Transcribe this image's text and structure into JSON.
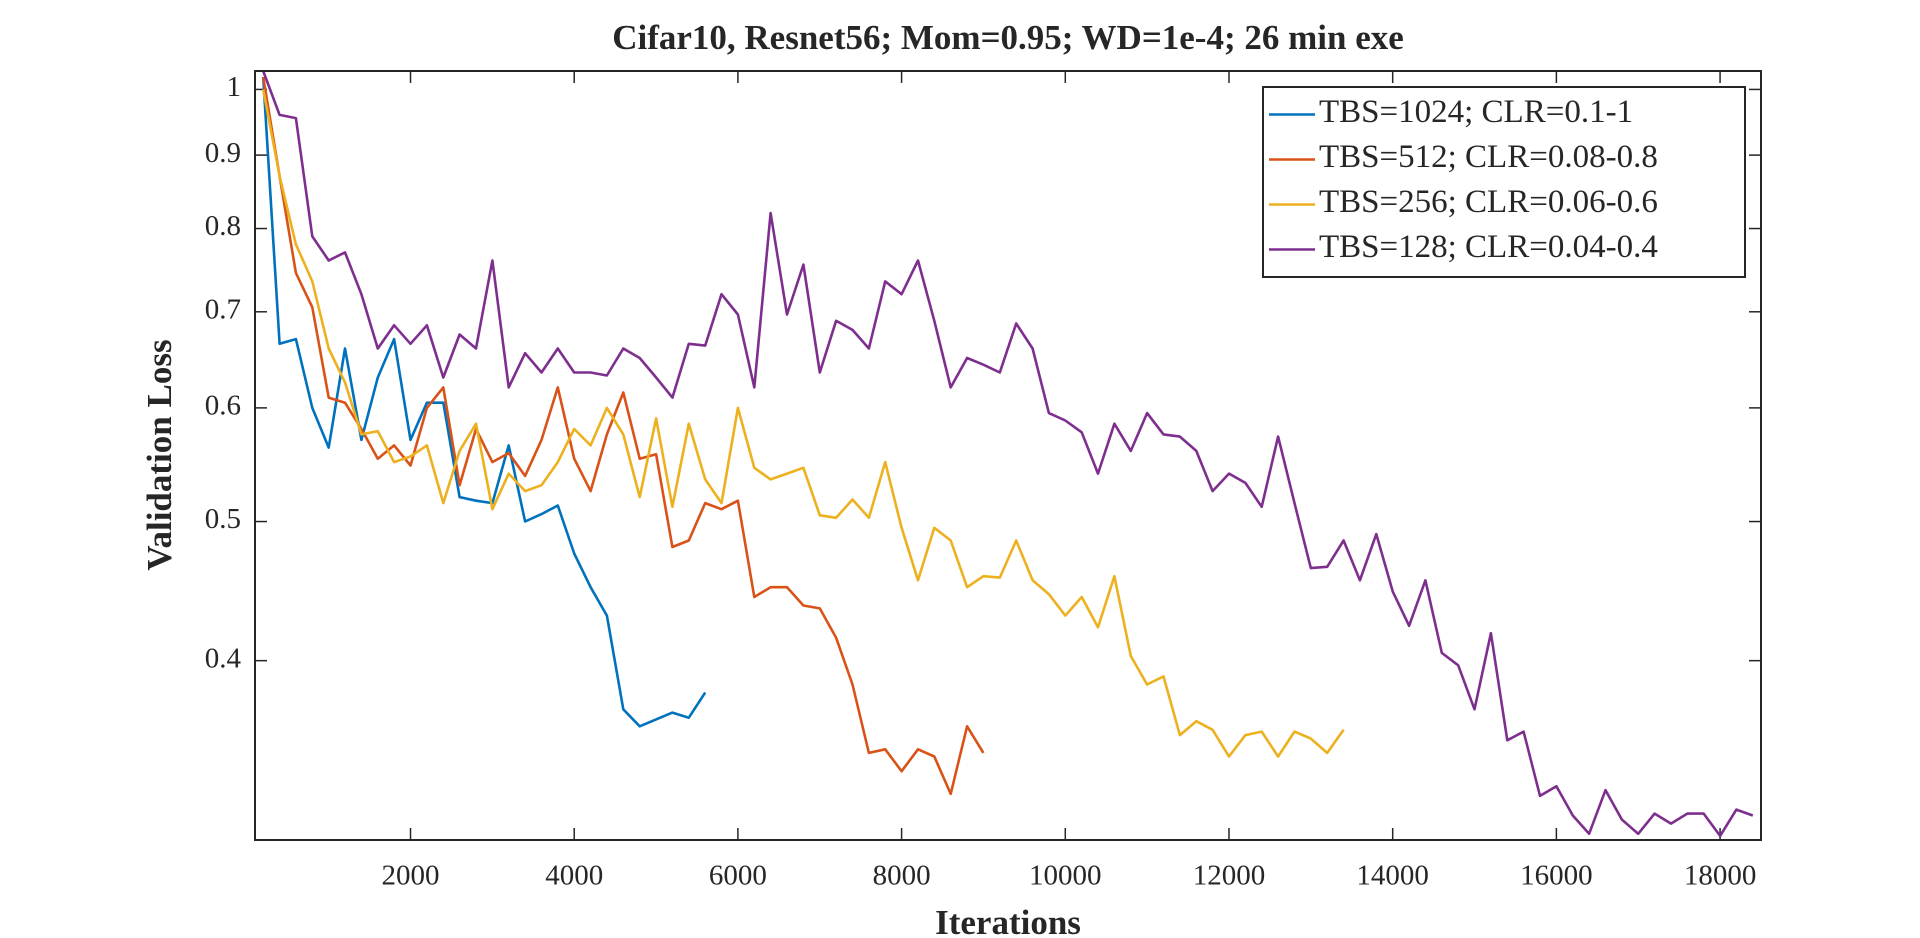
{
  "chart_data": {
    "type": "line",
    "title": "Cifar10, Resnet56; Mom=0.95; WD=1e-4; 26 min exe",
    "x_label": "Iterations",
    "y_label": "Validation Loss",
    "xlim": [
      100,
      18500
    ],
    "ylim": [
      0.3,
      1.03
    ],
    "yscale": "log",
    "xticks": [
      2000,
      4000,
      6000,
      8000,
      10000,
      12000,
      14000,
      16000,
      18000
    ],
    "yticks": [
      0.4,
      0.5,
      0.6,
      0.7,
      0.8,
      0.9,
      1
    ],
    "legend": "upper right",
    "series": [
      {
        "name": "TBS=1024; CLR=0.1-1",
        "color": "#0072BD",
        "x": [
          200,
          400,
          600,
          800,
          1000,
          1200,
          1400,
          1600,
          1800,
          2000,
          2200,
          2400,
          2600,
          2800,
          3000,
          3200,
          3400,
          3600,
          3800,
          4000,
          4200,
          4400,
          4600,
          4800,
          5000,
          5200,
          5400,
          5600
        ],
        "values": [
          1.02,
          0.665,
          0.67,
          0.6,
          0.563,
          0.66,
          0.57,
          0.63,
          0.67,
          0.57,
          0.605,
          0.605,
          0.52,
          0.517,
          0.515,
          0.565,
          0.5,
          0.506,
          0.513,
          0.475,
          0.45,
          0.43,
          0.37,
          0.36,
          0.364,
          0.368,
          0.365,
          0.38
        ]
      },
      {
        "name": "TBS=512; CLR=0.08-0.8",
        "color": "#D95319",
        "x": [
          200,
          400,
          600,
          800,
          1000,
          1200,
          1400,
          1600,
          1800,
          2000,
          2200,
          2400,
          2600,
          2800,
          3000,
          3200,
          3400,
          3600,
          3800,
          4000,
          4200,
          4400,
          4600,
          4800,
          5000,
          5200,
          5400,
          5600,
          5800,
          6000,
          6200,
          6400,
          6600,
          6800,
          7000,
          7200,
          7400,
          7600,
          7800,
          8000,
          8200,
          8400,
          8600,
          8800,
          9000
        ],
        "values": [
          1.02,
          0.87,
          0.745,
          0.705,
          0.61,
          0.605,
          0.58,
          0.553,
          0.565,
          0.547,
          0.6,
          0.62,
          0.53,
          0.58,
          0.55,
          0.558,
          0.538,
          0.57,
          0.62,
          0.553,
          0.525,
          0.575,
          0.615,
          0.553,
          0.557,
          0.48,
          0.485,
          0.515,
          0.51,
          0.517,
          0.443,
          0.45,
          0.45,
          0.437,
          0.435,
          0.415,
          0.385,
          0.345,
          0.347,
          0.335,
          0.347,
          0.343,
          0.323,
          0.36,
          0.345
        ]
      },
      {
        "name": "TBS=256; CLR=0.06-0.6",
        "color": "#EDB120",
        "x": [
          200,
          400,
          600,
          800,
          1000,
          1200,
          1400,
          1600,
          1800,
          2000,
          2200,
          2400,
          2600,
          2800,
          3000,
          3200,
          3400,
          3600,
          3800,
          4000,
          4200,
          4400,
          4600,
          4800,
          5000,
          5200,
          5400,
          5600,
          5800,
          6000,
          6200,
          6400,
          6600,
          6800,
          7000,
          7200,
          7400,
          7600,
          7800,
          8000,
          8200,
          8400,
          8600,
          8800,
          9000,
          9200,
          9400,
          9600,
          9800,
          10000,
          10200,
          10400,
          10600,
          10800,
          11000,
          11200,
          11400,
          11600,
          11800,
          12000,
          12200,
          12400,
          12600,
          12800,
          13000,
          13200,
          13400
        ],
        "values": [
          1.0,
          0.87,
          0.78,
          0.735,
          0.66,
          0.625,
          0.575,
          0.578,
          0.55,
          0.555,
          0.565,
          0.515,
          0.56,
          0.585,
          0.51,
          0.54,
          0.525,
          0.53,
          0.55,
          0.58,
          0.565,
          0.6,
          0.575,
          0.52,
          0.59,
          0.512,
          0.585,
          0.535,
          0.515,
          0.6,
          0.545,
          0.535,
          0.54,
          0.545,
          0.505,
          0.503,
          0.518,
          0.503,
          0.55,
          0.495,
          0.455,
          0.495,
          0.485,
          0.45,
          0.458,
          0.457,
          0.485,
          0.455,
          0.445,
          0.43,
          0.443,
          0.422,
          0.458,
          0.403,
          0.385,
          0.39,
          0.355,
          0.363,
          0.358,
          0.343,
          0.355,
          0.357,
          0.343,
          0.357,
          0.353,
          0.345,
          0.358
        ]
      },
      {
        "name": "TBS=128; CLR=0.04-0.4",
        "color": "#7E2F8E",
        "x": [
          200,
          400,
          600,
          800,
          1000,
          1200,
          1400,
          1600,
          1800,
          2000,
          2200,
          2400,
          2600,
          2800,
          3000,
          3200,
          3400,
          3600,
          3800,
          4000,
          4200,
          4400,
          4600,
          4800,
          5000,
          5200,
          5400,
          5600,
          5800,
          6000,
          6200,
          6400,
          6600,
          6800,
          7000,
          7200,
          7400,
          7600,
          7800,
          8000,
          8200,
          8400,
          8600,
          8800,
          9000,
          9200,
          9400,
          9600,
          9800,
          10000,
          10200,
          10400,
          10600,
          10800,
          11000,
          11200,
          11400,
          11600,
          11800,
          12000,
          12200,
          12400,
          12600,
          12800,
          13000,
          13200,
          13400,
          13600,
          13800,
          14000,
          14200,
          14400,
          14600,
          14800,
          15000,
          15200,
          15400,
          15600,
          15800,
          16000,
          16200,
          16400,
          16600,
          16800,
          17000,
          17200,
          17400,
          17600,
          17800,
          18000,
          18200,
          18400
        ],
        "values": [
          1.03,
          0.96,
          0.955,
          0.79,
          0.76,
          0.77,
          0.72,
          0.66,
          0.685,
          0.665,
          0.685,
          0.63,
          0.675,
          0.66,
          0.76,
          0.62,
          0.655,
          0.635,
          0.66,
          0.635,
          0.635,
          0.632,
          0.66,
          0.65,
          0.63,
          0.61,
          0.665,
          0.663,
          0.72,
          0.697,
          0.62,
          0.82,
          0.697,
          0.755,
          0.635,
          0.69,
          0.68,
          0.66,
          0.735,
          0.72,
          0.76,
          0.69,
          0.62,
          0.65,
          0.643,
          0.635,
          0.687,
          0.66,
          0.595,
          0.588,
          0.577,
          0.54,
          0.585,
          0.56,
          0.595,
          0.575,
          0.573,
          0.56,
          0.525,
          0.54,
          0.532,
          0.512,
          0.573,
          0.515,
          0.464,
          0.465,
          0.485,
          0.455,
          0.49,
          0.447,
          0.423,
          0.455,
          0.405,
          0.397,
          0.37,
          0.418,
          0.352,
          0.357,
          0.322,
          0.327,
          0.312,
          0.303,
          0.325,
          0.31,
          0.303,
          0.313,
          0.308,
          0.313,
          0.313,
          0.302,
          0.315,
          0.312
        ]
      }
    ]
  }
}
